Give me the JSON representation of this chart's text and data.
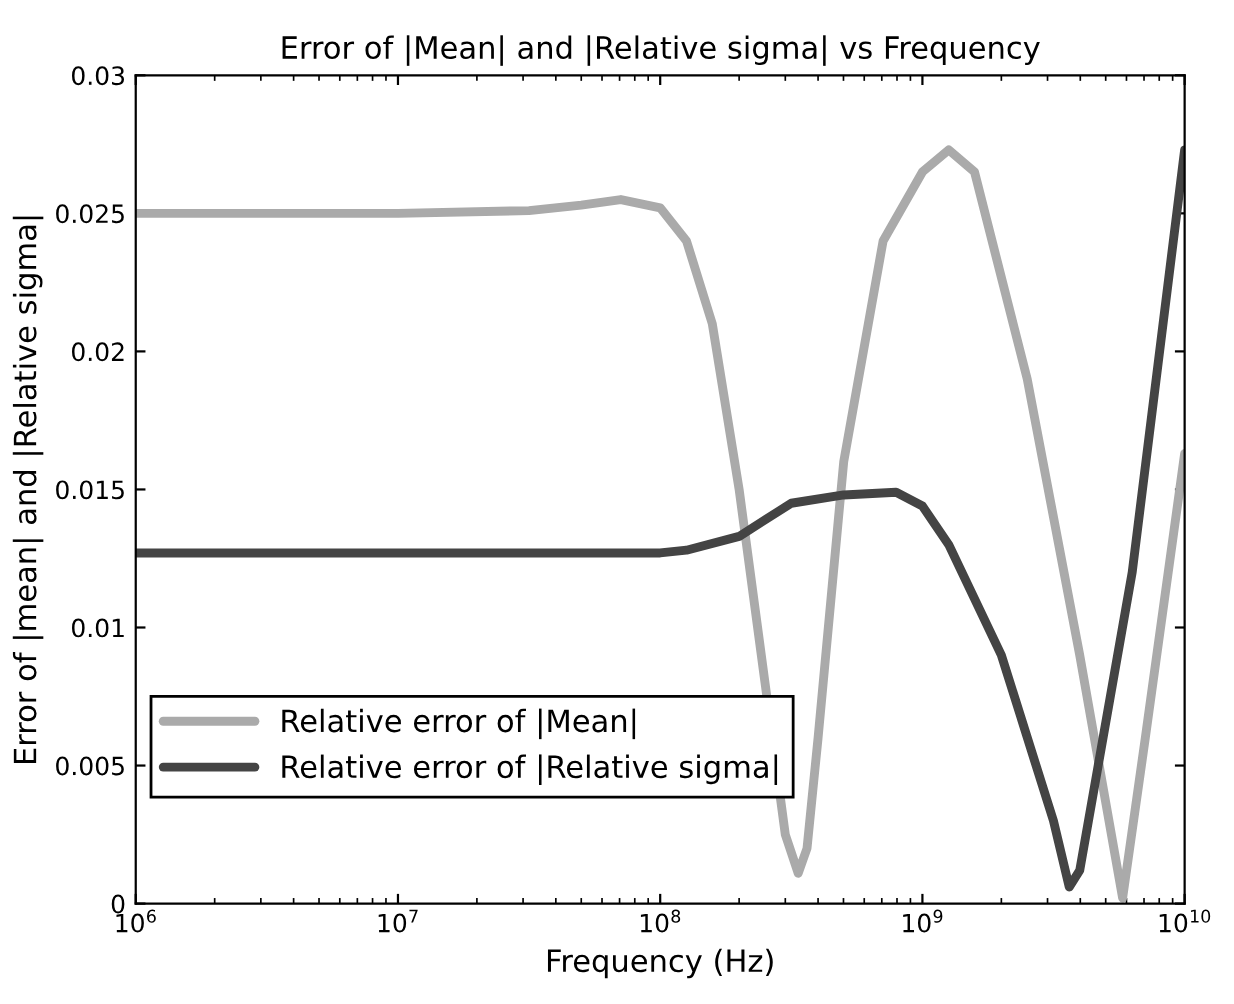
{
  "chart_data": {
    "type": "line",
    "title": "Error of |Mean| and |Relative sigma| vs Frequency",
    "xlabel": "Frequency (Hz)",
    "ylabel": "Error of |mean| and |Relative sigma|",
    "log": "x",
    "xlim": [
      1000000,
      10000000000
    ],
    "xticks": [
      {
        "value": 1000000,
        "label": "10$^{6}$"
      },
      {
        "value": 10000000,
        "label": "10$^{7}$"
      },
      {
        "value": 100000000,
        "label": "10$^{8}$"
      },
      {
        "value": 1000000000,
        "label": "10$^{9}$"
      },
      {
        "value": 10000000000,
        "label": "10$^{10}$"
      }
    ],
    "ylim": [
      0,
      0.03
    ],
    "yticks": [
      0,
      0.005,
      0.01,
      0.015,
      0.02,
      0.025,
      0.03
    ],
    "grid": false,
    "legend": "bottom left",
    "marker": "none",
    "line_style": "solid",
    "series": [
      {
        "name": "Relative error of |Mean|",
        "color": "#aaaaaa",
        "x": [
          1000000,
          10000000,
          31600000,
          50000000,
          70800000,
          100000000,
          126000000,
          158000000,
          200000000,
          251000000,
          300000000,
          336000000,
          363000000,
          400000000,
          501000000,
          708000000,
          1000000000,
          1260000000,
          1580000000,
          2510000000,
          3980000000,
          5800000000,
          7080000000,
          10000000000
        ],
        "values": [
          0.025,
          0.025,
          0.0251,
          0.0253,
          0.0255,
          0.0252,
          0.024,
          0.021,
          0.015,
          0.008,
          0.0025,
          0.0011,
          0.002,
          0.006,
          0.016,
          0.024,
          0.0265,
          0.0273,
          0.0265,
          0.019,
          0.009,
          0.0002,
          0.006,
          0.0163
        ]
      },
      {
        "name": "Relative error of |Relative sigma|",
        "color": "#444444",
        "x": [
          1000000,
          10000000,
          100000000,
          126000000,
          200000000,
          316000000,
          501000000,
          794000000,
          1000000000,
          1260000000,
          2000000000,
          3160000000,
          3630000000,
          3980000000,
          6310000000,
          10000000000
        ],
        "values": [
          0.0127,
          0.0127,
          0.0127,
          0.0128,
          0.0133,
          0.0145,
          0.0148,
          0.0149,
          0.0144,
          0.013,
          0.009,
          0.003,
          0.0006,
          0.0012,
          0.012,
          0.0273
        ]
      }
    ]
  }
}
